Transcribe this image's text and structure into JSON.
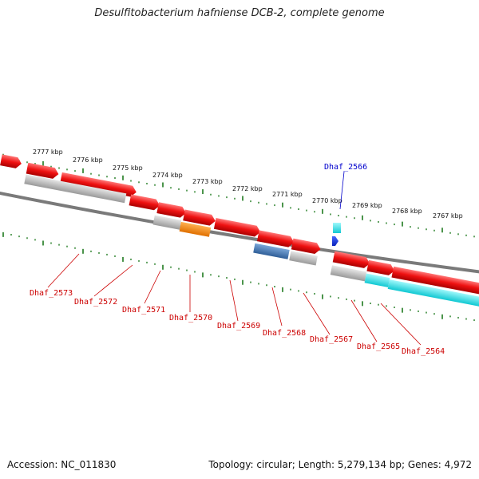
{
  "title": "Desulfitobacterium hafniense DCB-2, complete genome",
  "footer": {
    "accession": "Accession: NC_011830",
    "summary": "Topology: circular; Length: 5,279,134 bp; Genes: 4,972"
  },
  "colors": {
    "backbone": "#7a7a7a",
    "scale": "#1e7a1e",
    "gene_red": "#ee1111",
    "gene_gray": "#b0b0b0",
    "gene_orange": "#ff8800",
    "gene_steel": "#4a78b0",
    "gene_cyan": "#22e0e8",
    "gene_blue": "#1133dd",
    "label_red": "#cc0000",
    "label_blue": "#0000cc"
  },
  "scale_labels": [
    "2777 kbp",
    "2776 kbp",
    "2775 kbp",
    "2774 kbp",
    "2773 kbp",
    "2772 kbp",
    "2771 kbp",
    "2770 kbp",
    "2769 kbp",
    "2768 kbp",
    "2767 kbp"
  ],
  "gene_labels": [
    {
      "text": "Dhaf_2573",
      "color": "red"
    },
    {
      "text": "Dhaf_2572",
      "color": "red"
    },
    {
      "text": "Dhaf_2571",
      "color": "red"
    },
    {
      "text": "Dhaf_2570",
      "color": "red"
    },
    {
      "text": "Dhaf_2569",
      "color": "red"
    },
    {
      "text": "Dhaf_2568",
      "color": "red"
    },
    {
      "text": "Dhaf_2567",
      "color": "red"
    },
    {
      "text": "Dhaf_2566",
      "color": "blue"
    },
    {
      "text": "Dhaf_2565",
      "color": "red"
    },
    {
      "text": "Dhaf_2564",
      "color": "red"
    }
  ]
}
